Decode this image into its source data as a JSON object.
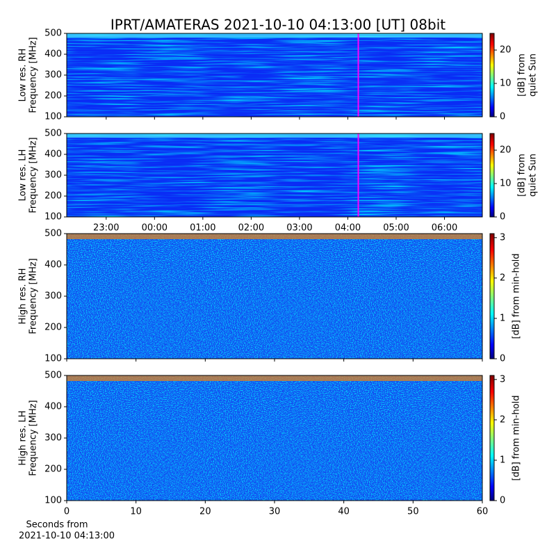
{
  "title": "IPRT/AMATERAS 2021-10-10 04:13:00 [UT]   08bit",
  "chart_data": [
    {
      "type": "heatmap",
      "ylabel": [
        "Low res. RH",
        "Frequency [MHz]"
      ],
      "ylim": [
        100,
        500
      ],
      "yticks": [
        100,
        200,
        300,
        400,
        500
      ],
      "xlim": [
        "22:11",
        "06:47"
      ],
      "marker": "04:13",
      "marker_color": "#ff00ff",
      "colormap": "jet",
      "clim": [
        0,
        25
      ],
      "cticks": [
        0,
        10,
        20
      ],
      "clabel": [
        "[dB] from",
        "quiet Sun"
      ]
    },
    {
      "type": "heatmap",
      "ylabel": [
        "Low res. LH",
        "Frequency [MHz]"
      ],
      "ylim": [
        100,
        500
      ],
      "yticks": [
        100,
        200,
        300,
        400,
        500
      ],
      "xlim": [
        "22:11",
        "06:47"
      ],
      "xticks": [
        "23:00",
        "00:00",
        "01:00",
        "02:00",
        "03:00",
        "04:00",
        "05:00",
        "06:00"
      ],
      "marker": "04:13",
      "marker_color": "#ff00ff",
      "colormap": "jet",
      "clim": [
        0,
        25
      ],
      "cticks": [
        0,
        10,
        20
      ],
      "clabel": [
        "[dB] from",
        "quiet Sun"
      ]
    },
    {
      "type": "heatmap",
      "ylabel": [
        "High res. RH",
        "Frequency [MHz]"
      ],
      "ylim": [
        100,
        500
      ],
      "yticks": [
        100,
        200,
        300,
        400,
        500
      ],
      "xlim": [
        0,
        60
      ],
      "colormap": "jet",
      "clim": [
        0,
        3.1
      ],
      "cticks": [
        0,
        1,
        2,
        3
      ],
      "clabel": [
        "[dB] from min-hold"
      ]
    },
    {
      "type": "heatmap",
      "ylabel": [
        "High res. LH",
        "Frequency [MHz]"
      ],
      "ylim": [
        100,
        500
      ],
      "yticks": [
        100,
        200,
        300,
        400,
        500
      ],
      "xlim": [
        0,
        60
      ],
      "xticks": [
        0,
        10,
        20,
        30,
        40,
        50,
        60
      ],
      "xlabel": [
        "Seconds from",
        "2021-10-10 04:13:00"
      ],
      "colormap": "jet",
      "clim": [
        0,
        3.1
      ],
      "cticks": [
        0,
        1,
        2,
        3
      ],
      "clabel": [
        "[dB] from min-hold"
      ]
    }
  ]
}
